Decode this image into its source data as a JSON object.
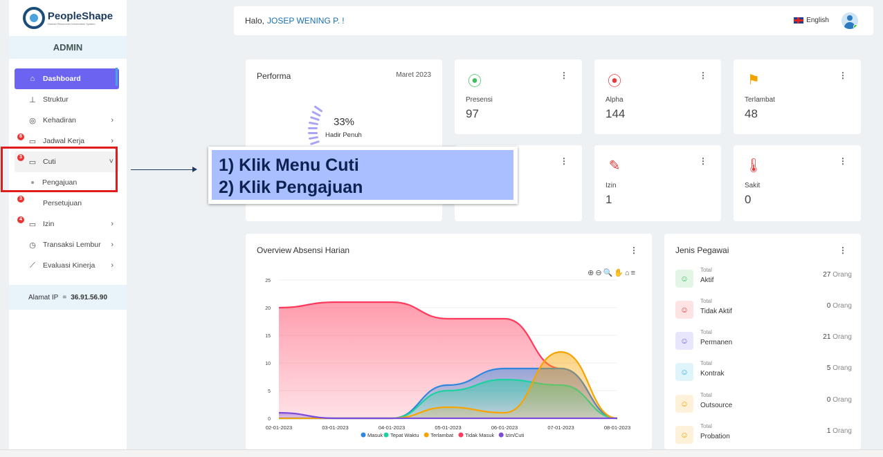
{
  "brand": {
    "name": "PeopleShape",
    "tagline": "Human Resources Information System"
  },
  "role": "ADMIN",
  "sidebar": {
    "items": [
      {
        "label": "Dashboard",
        "icon": "home-icon"
      },
      {
        "label": "Struktur",
        "icon": "sitemap-icon"
      },
      {
        "label": "Kehadiran",
        "icon": "fingerprint-icon"
      },
      {
        "label": "Jadwal Kerja",
        "icon": "calendar-icon",
        "badge": "8"
      },
      {
        "label": "Cuti",
        "icon": "calendar-icon",
        "badge": "3"
      },
      {
        "label": "Pengajuan"
      },
      {
        "label": "Persetujuan",
        "badge": "3"
      },
      {
        "label": "Izin",
        "icon": "calendar-icon",
        "badge": "4"
      },
      {
        "label": "Transaksi Lembur",
        "icon": "clock-icon"
      },
      {
        "label": "Evaluasi Kinerja",
        "icon": "chart-line-icon"
      }
    ],
    "ip_label": "Alamat IP",
    "ip_sep": "=",
    "ip_value": "36.91.56.90"
  },
  "header": {
    "greeting": "Halo,",
    "user": "JOSEP WENING P. !",
    "language": "English"
  },
  "performa": {
    "title": "Performa",
    "date": "Maret 2023",
    "percent": "33%",
    "label": "Hadir Penuh"
  },
  "stats": [
    {
      "label": "Presensi",
      "value": "97",
      "color": "#3fbf5f"
    },
    {
      "label": "Alpha",
      "value": "144",
      "color": "#e23b3b"
    },
    {
      "label": "Terlambat",
      "value": "48",
      "color": "#f0a400"
    },
    {
      "label": "",
      "value": "",
      "color": "#f0a400"
    },
    {
      "label": "Izin",
      "value": "1",
      "color": "#e23b3b"
    },
    {
      "label": "Sakit",
      "value": "0",
      "color": "#e23b3b"
    }
  ],
  "overview": {
    "title": "Overview Absensi Harian"
  },
  "chart_data": {
    "type": "area",
    "title": "Overview Absensi Harian",
    "x": [
      "02-01-2023",
      "03-01-2023",
      "04-01-2023",
      "05-01-2023",
      "06-01-2023",
      "07-01-2023",
      "08-01-2023"
    ],
    "ylim": [
      0,
      25
    ],
    "yticks": [
      0,
      5,
      10,
      15,
      20,
      25
    ],
    "grid": true,
    "legend_position": "bottom",
    "series": [
      {
        "name": "Masuk",
        "color": "#2e86de",
        "values": [
          0,
          0,
          0,
          6,
          9,
          9,
          0
        ]
      },
      {
        "name": "Tepat Waktu",
        "color": "#1dd1a1",
        "values": [
          0,
          0,
          0,
          5,
          7,
          6,
          0
        ]
      },
      {
        "name": "Terlambat",
        "color": "#f7a400",
        "values": [
          0,
          0,
          0,
          2,
          1,
          12,
          0
        ]
      },
      {
        "name": "Tidak Masuk",
        "color": "#ff3a5c",
        "values": [
          20,
          21,
          21,
          18,
          18,
          9,
          0
        ]
      },
      {
        "name": "Izin/Cuti",
        "color": "#7c4ddb",
        "values": [
          1,
          0,
          0,
          0,
          0,
          0,
          0
        ]
      }
    ]
  },
  "jenis_pegawai": {
    "title": "Jenis Pegawai",
    "rows": [
      {
        "small": "Total",
        "name": "Aktif",
        "count": "27",
        "unit": "Orang",
        "color": "#3fbf5f",
        "bg": "#e3f6e6"
      },
      {
        "small": "Total",
        "name": "Tidak Aktif",
        "count": "0",
        "unit": "Orang",
        "color": "#e23b3b",
        "bg": "#fde3e3"
      },
      {
        "small": "Total",
        "name": "Permanen",
        "count": "21",
        "unit": "Orang",
        "color": "#6c63f0",
        "bg": "#e7e6fd"
      },
      {
        "small": "Total",
        "name": "Kontrak",
        "count": "5",
        "unit": "Orang",
        "color": "#2bb6e0",
        "bg": "#dff4fb"
      },
      {
        "small": "Total",
        "name": "Outsource",
        "count": "0",
        "unit": "Orang",
        "color": "#f0a400",
        "bg": "#fdf1d9"
      },
      {
        "small": "Total",
        "name": "Probation",
        "count": "1",
        "unit": "Orang",
        "color": "#f0a400",
        "bg": "#fdf1d9"
      }
    ]
  },
  "callout": {
    "line1": "1) Klik Menu Cuti",
    "line2": "2) Klik Pengajuan"
  }
}
